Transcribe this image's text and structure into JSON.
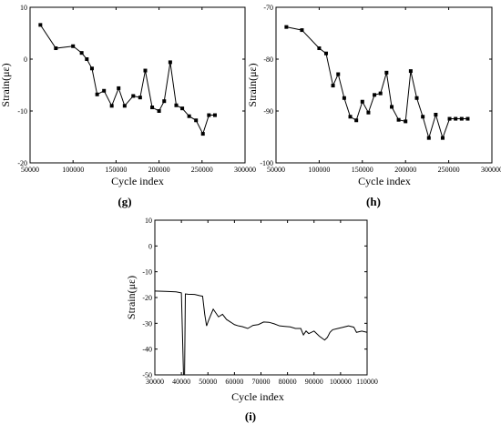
{
  "chart_data": [
    {
      "type": "line",
      "panel_label": "(g)",
      "title": "",
      "xlabel": "Cycle index",
      "ylabel": "Strain(με)",
      "xlim": [
        50000,
        300000
      ],
      "ylim": [
        -20,
        10
      ],
      "xticks": [
        50000,
        100000,
        150000,
        200000,
        250000,
        300000
      ],
      "yticks": [
        -20,
        -10,
        0,
        10
      ],
      "markers": true,
      "grid": false,
      "x": [
        62000,
        80000,
        100000,
        110000,
        116000,
        122000,
        128000,
        136000,
        145000,
        153000,
        160000,
        170000,
        178000,
        184000,
        192000,
        200000,
        206000,
        213000,
        220000,
        227000,
        235000,
        243000,
        251000,
        258000,
        265000
      ],
      "y": [
        6.6,
        2.1,
        2.5,
        1.2,
        0.0,
        -1.8,
        -6.8,
        -6.1,
        -9.0,
        -5.6,
        -9.0,
        -7.1,
        -7.4,
        -2.2,
        -9.3,
        -10.0,
        -8.1,
        -0.6,
        -8.9,
        -9.5,
        -11.0,
        -11.8,
        -14.4,
        -10.8,
        -10.8
      ]
    },
    {
      "type": "line",
      "panel_label": "(h)",
      "title": "",
      "xlabel": "Cycle index",
      "ylabel": "Strain(με)",
      "xlim": [
        50000,
        300000
      ],
      "ylim": [
        -100,
        -70
      ],
      "xticks": [
        50000,
        100000,
        150000,
        200000,
        250000,
        300000
      ],
      "yticks": [
        -100,
        -90,
        -80,
        -70
      ],
      "markers": true,
      "grid": false,
      "x": [
        62000,
        80000,
        100000,
        108000,
        116000,
        122000,
        129000,
        136000,
        143000,
        150000,
        157000,
        164000,
        171000,
        178000,
        184000,
        192000,
        200000,
        206000,
        213000,
        220000,
        227000,
        235000,
        243000,
        251000,
        258000,
        265000,
        272000
      ],
      "y": [
        -73.8,
        -74.4,
        -77.9,
        -78.9,
        -85.1,
        -82.9,
        -87.5,
        -91.1,
        -91.8,
        -88.2,
        -90.3,
        -86.9,
        -86.6,
        -82.6,
        -89.2,
        -91.7,
        -92.0,
        -82.3,
        -87.5,
        -91.1,
        -95.2,
        -90.7,
        -95.2,
        -91.5,
        -91.5,
        -91.5,
        -91.5
      ]
    },
    {
      "type": "line",
      "panel_label": "(i)",
      "title": "",
      "xlabel": "Cycle index",
      "ylabel": "Strain(με)",
      "xlim": [
        30000,
        110000
      ],
      "ylim": [
        -50,
        10
      ],
      "xticks": [
        30000,
        40000,
        50000,
        60000,
        70000,
        80000,
        90000,
        100000,
        110000
      ],
      "yticks": [
        -50,
        -40,
        -30,
        -20,
        -10,
        0,
        10
      ],
      "markers": false,
      "grid": false,
      "x": [
        30000,
        34000,
        38000,
        40000,
        40800,
        41200,
        41500,
        42500,
        45000,
        47000,
        48000,
        48800,
        49500,
        50200,
        51000,
        52000,
        53000,
        54000,
        55500,
        57000,
        58500,
        60000,
        61500,
        63000,
        65000,
        67000,
        69000,
        71000,
        73000,
        75000,
        77000,
        79000,
        81000,
        83000,
        85000,
        86000,
        87000,
        88000,
        90000,
        92000,
        94000,
        95000,
        96000,
        97000,
        99000,
        101000,
        103000,
        105000,
        106000,
        108000,
        110000
      ],
      "y": [
        -17.5,
        -17.6,
        -17.8,
        -18.2,
        -50,
        -50,
        -18.6,
        -18.7,
        -18.8,
        -19.3,
        -19.5,
        -26.5,
        -31.0,
        -29.0,
        -27.0,
        -24.5,
        -26.0,
        -27.5,
        -26.5,
        -28.5,
        -29.5,
        -30.5,
        -31.0,
        -31.3,
        -32.0,
        -30.8,
        -30.5,
        -29.5,
        -29.6,
        -30.2,
        -31.0,
        -31.2,
        -31.4,
        -32.0,
        -32.0,
        -34.5,
        -33.0,
        -34.0,
        -33.0,
        -35.0,
        -36.5,
        -35.5,
        -33.5,
        -32.5,
        -32.0,
        -31.5,
        -31.0,
        -31.5,
        -33.5,
        -33.0,
        -33.5
      ]
    }
  ]
}
